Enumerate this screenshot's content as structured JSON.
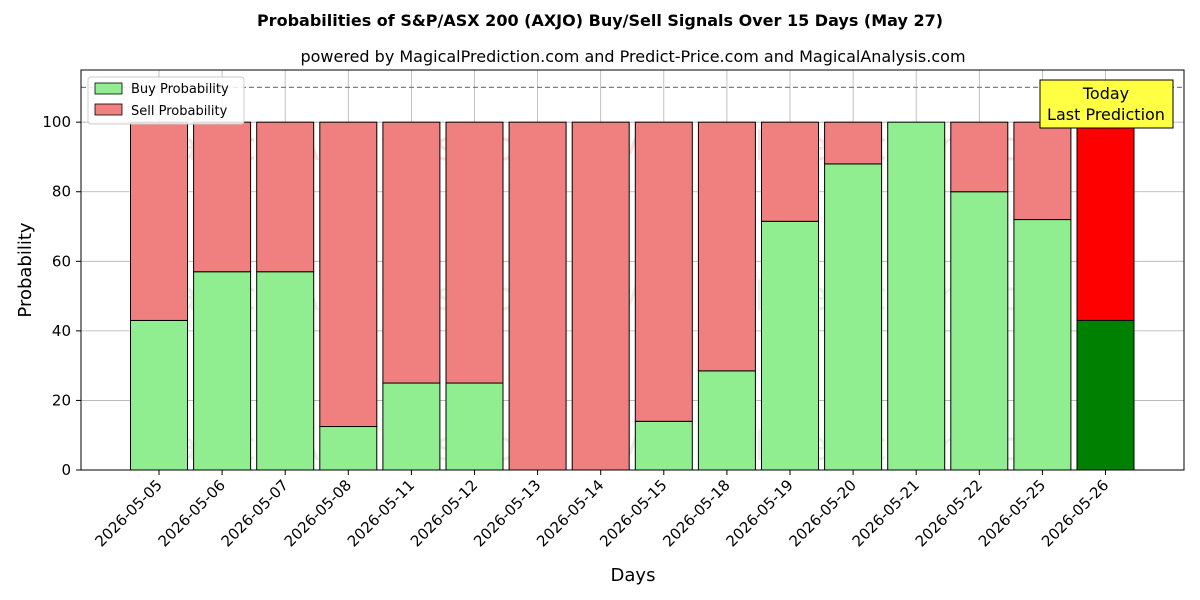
{
  "chart_data": {
    "type": "bar",
    "stacked": true,
    "title": "Probabilities of S&P/ASX 200 (AXJO) Buy/Sell Signals Over 15 Days (May 27)",
    "subtitle": "powered by MagicalPrediction.com and Predict-Price.com and MagicalAnalysis.com",
    "xlabel": "Days",
    "ylabel": "Probability",
    "ylim": [
      0,
      115
    ],
    "yticks": [
      0,
      20,
      40,
      60,
      80,
      100
    ],
    "reference_line": 110,
    "grid": true,
    "legend_placement": "top-left",
    "categories": [
      "2026-05-05",
      "2026-05-06",
      "2026-05-07",
      "2026-05-08",
      "2026-05-11",
      "2026-05-12",
      "2026-05-13",
      "2026-05-14",
      "2026-05-15",
      "2026-05-18",
      "2026-05-19",
      "2026-05-20",
      "2026-05-21",
      "2026-05-22",
      "2026-05-25",
      "2026-05-26"
    ],
    "series": [
      {
        "name": "Buy Probability",
        "color": "#90ee90",
        "highlight_color": "#008000",
        "values": [
          43,
          57,
          57,
          12.5,
          25,
          25,
          0,
          0,
          14,
          28.5,
          71.5,
          88,
          100,
          80,
          72,
          43
        ]
      },
      {
        "name": "Sell Probability",
        "color": "#f08080",
        "highlight_color": "#ff0000",
        "values": [
          57,
          43,
          43,
          87.5,
          75,
          75,
          100,
          100,
          86,
          71.5,
          28.5,
          12,
          0,
          20,
          28,
          57
        ]
      }
    ],
    "annotation": {
      "line1": "Today",
      "line2": "Last Prediction",
      "background": "#ffff44"
    },
    "watermarks": [
      "MagicalAnalysis.com",
      "MagicalPrediction.com"
    ]
  }
}
